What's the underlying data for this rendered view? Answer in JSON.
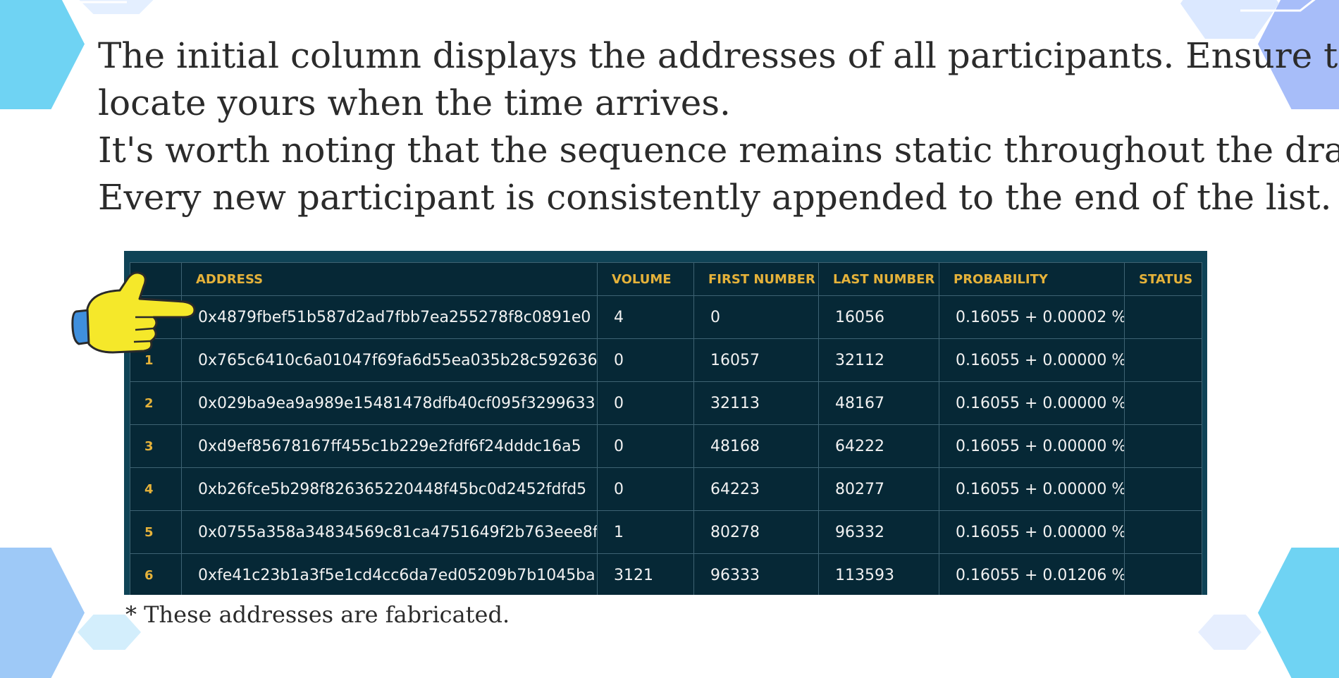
{
  "intro": {
    "line1": "The initial column displays the addresses of all participants. Ensure to",
    "line2": "locate yours when the time arrives.",
    "line3": "It's worth noting that the sequence remains static throughout the draw.",
    "line4": "Every new participant is consistently appended to the end of the list."
  },
  "table": {
    "headers": [
      "",
      "ADDRESS",
      "VOLUME",
      "FIRST NUMBER",
      "LAST NUMBER",
      "PROBABILITY",
      "STATUS"
    ],
    "rows": [
      [
        "",
        "0x4879fbef51b587d2ad7fbb7ea255278f8c0891e0",
        "4",
        "0",
        "16056",
        "0.16055 + 0.00002 %",
        ""
      ],
      [
        "1",
        "0x765c6410c6a01047f69fa6d55ea035b28c592636",
        "0",
        "16057",
        "32112",
        "0.16055 + 0.00000 %",
        ""
      ],
      [
        "2",
        "0x029ba9ea9a989e15481478dfb40cf095f3299633",
        "0",
        "32113",
        "48167",
        "0.16055 + 0.00000 %",
        ""
      ],
      [
        "3",
        "0xd9ef85678167ff455c1b229e2fdf6f24dddc16a5",
        "0",
        "48168",
        "64222",
        "0.16055 + 0.00000 %",
        ""
      ],
      [
        "4",
        "0xb26fce5b298f826365220448f45bc0d2452fdfd5",
        "0",
        "64223",
        "80277",
        "0.16055 + 0.00000 %",
        ""
      ],
      [
        "5",
        "0x0755a358a34834569c81ca4751649f2b763eee8f",
        "1",
        "80278",
        "96332",
        "0.16055 + 0.00000 %",
        ""
      ],
      [
        "6",
        "0xfe41c23b1a3f5e1cd4cc6da7ed05209b7b1045ba",
        "3121",
        "96333",
        "113593",
        "0.16055 + 0.01206 %",
        ""
      ]
    ]
  },
  "footnote": "* These addresses are fabricated.",
  "icons": {
    "pointer": "pointing-hand-icon"
  },
  "colors": {
    "header_text": "#e5b23a",
    "table_bg": "#062836",
    "table_frame": "#0f4356",
    "cell_text": "#f2f2f2",
    "decor_cyan": "#6fd3f3",
    "decor_blue": "#9fb8f8",
    "hand_yellow": "#f5e82a"
  }
}
